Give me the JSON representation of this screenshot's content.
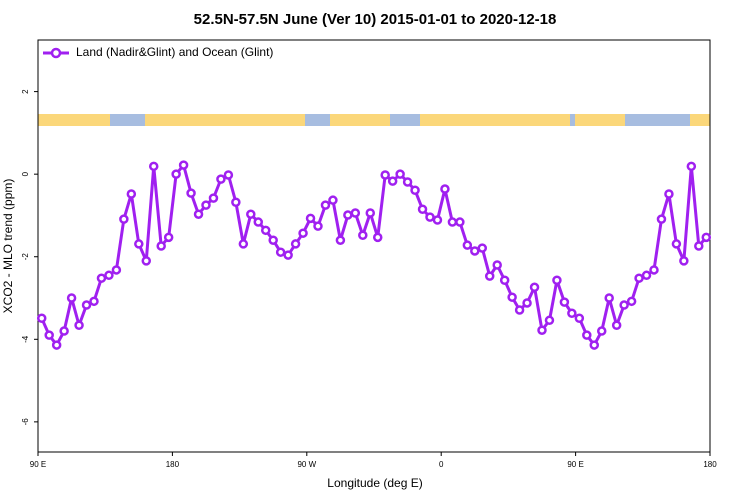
{
  "chart_data": {
    "type": "line",
    "title": "52.5N-57.5N June (Ver 10)   2015-01-01 to 2020-12-18",
    "x_label": "Longitude (deg E)",
    "y_label": "XCO2 - MLO trend (ppm)",
    "xlim": [
      90,
      540
    ],
    "xticks": [
      {
        "value": 90,
        "label": "90 E"
      },
      180,
      {
        "value": 270,
        "label": "90 W"
      },
      {
        "value": 360,
        "label": "0"
      },
      {
        "value": 450,
        "label": "90 E"
      },
      {
        "value": 540,
        "label": "180"
      }
    ],
    "ylim": [
      -6.73,
      3.25
    ],
    "yticks": [
      -6,
      -4,
      -2,
      0,
      2
    ],
    "legend": "top-left",
    "x": [
      92.5,
      97.5,
      102.5,
      107.5,
      112.5,
      117.5,
      122.5,
      127.5,
      132.5,
      137.5,
      142.5,
      147.5,
      152.5,
      157.5,
      162.5,
      167.5,
      172.5,
      177.5,
      182.5,
      187.5,
      192.5,
      197.5,
      202.5,
      207.5,
      212.5,
      217.5,
      222.5,
      227.5,
      232.5,
      237.5,
      242.5,
      247.5,
      252.5,
      257.5,
      262.5,
      267.5,
      272.5,
      277.5,
      282.5,
      287.5,
      292.5,
      297.5,
      302.5,
      307.5,
      312.5,
      317.5,
      322.5,
      327.5,
      332.5,
      337.5,
      342.5,
      347.5,
      352.5,
      357.5,
      362.5,
      367.5,
      372.5,
      377.5,
      382.5,
      387.5,
      392.5,
      397.5,
      402.5,
      407.5,
      412.5,
      417.5,
      422.5,
      427.5,
      432.5,
      437.5,
      442.5,
      447.5,
      452.5,
      457.5,
      462.5,
      467.5,
      472.5,
      477.5,
      482.5,
      487.5,
      492.5,
      497.5,
      502.5,
      507.5,
      512.5,
      517.5,
      522.5,
      527.5,
      532.5,
      537.5
    ],
    "series": [
      {
        "name": "Land (Nadir&Glint) and Ocean (Glint)",
        "color": "#a020f0",
        "values": [
          -3.49,
          -3.9,
          -4.14,
          -3.8,
          -3.0,
          -3.66,
          -3.17,
          -3.08,
          -2.52,
          -2.45,
          -2.32,
          -1.09,
          -0.48,
          -1.69,
          -2.1,
          0.19,
          -1.74,
          -1.53,
          0,
          0.22,
          -0.46,
          -0.97,
          -0.75,
          -0.58,
          -0.12,
          -0.02,
          -0.68,
          -1.69,
          -0.97,
          -1.16,
          -1.36,
          -1.6,
          -1.89,
          -1.96,
          -1.69,
          -1.43,
          -1.07,
          -1.26,
          -0.75,
          -0.63,
          -1.6,
          -0.99,
          -0.94,
          -1.48,
          -0.94,
          -1.53,
          -0.02,
          -0.17,
          0,
          -0.19,
          -0.39,
          -0.85,
          -1.04,
          -1.11,
          -0.36,
          -1.16,
          -1.16,
          -1.72,
          -1.86,
          -1.79,
          -2.47,
          -2.2,
          -2.57,
          -2.98,
          -3.29,
          -3.12,
          -2.74,
          -3.78,
          -3.54,
          -2.57,
          -3.1,
          -3.37,
          -3.49,
          -3.9,
          -4.14,
          -3.8,
          -3.0,
          -3.66,
          -3.17,
          -3.08,
          -2.52,
          -2.45,
          -2.32,
          -1.09,
          -0.48,
          -1.69,
          -2.1,
          0.19,
          -1.74,
          -1.53
        ]
      }
    ]
  }
}
